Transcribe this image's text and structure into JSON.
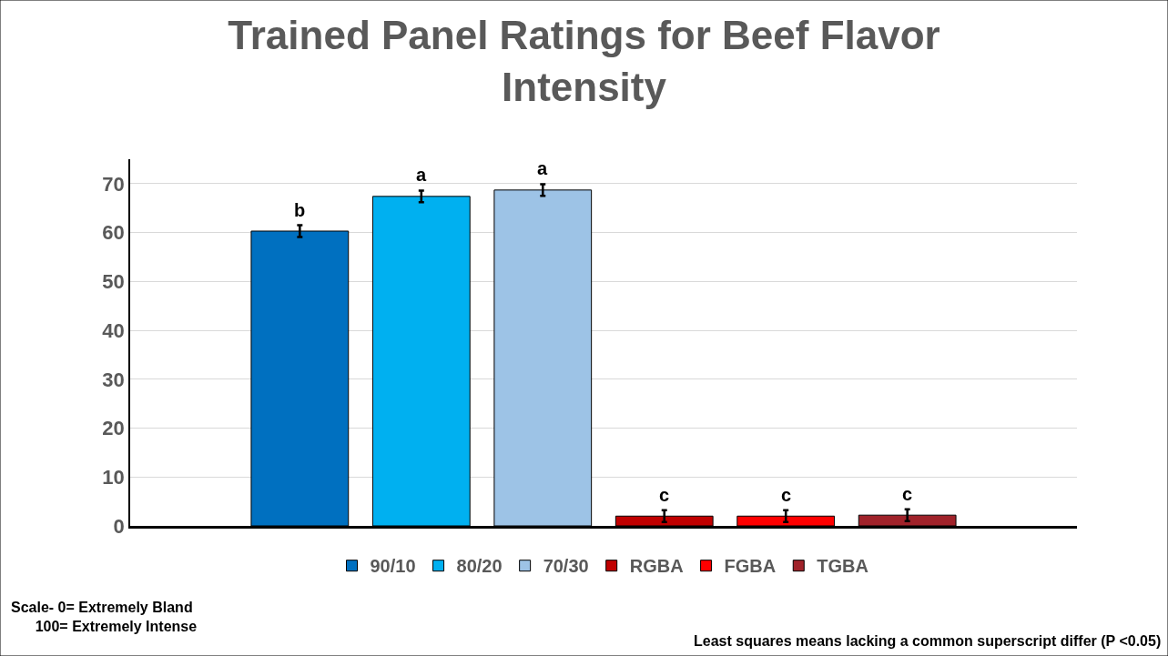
{
  "chart_data": {
    "type": "bar",
    "title": "Trained Panel Ratings for Beef Flavor Intensity",
    "categories": [
      null
    ],
    "series": [
      {
        "name": "90/10",
        "color": "#0070c0",
        "values": [
          60.3
        ],
        "errors": [
          1.2
        ],
        "value_labels": [
          "b"
        ]
      },
      {
        "name": "80/20",
        "color": "#00b0f0",
        "values": [
          67.4
        ],
        "errors": [
          1.2
        ],
        "value_labels": [
          "a"
        ]
      },
      {
        "name": "70/30",
        "color": "#9dc3e6",
        "values": [
          68.7
        ],
        "errors": [
          1.2
        ],
        "value_labels": [
          "a"
        ]
      },
      {
        "name": "RGBA",
        "color": "#c00000",
        "values": [
          2.0
        ],
        "errors": [
          1.2
        ],
        "value_labels": [
          "c"
        ]
      },
      {
        "name": "FGBA",
        "color": "#ff0000",
        "values": [
          2.0
        ],
        "errors": [
          1.2
        ],
        "value_labels": [
          "c"
        ]
      },
      {
        "name": "TGBA",
        "color": "#a0222a",
        "values": [
          2.2
        ],
        "errors": [
          1.2
        ],
        "value_labels": [
          "c"
        ]
      }
    ],
    "ylim": [
      0,
      75
    ],
    "yticks": [
      0,
      10,
      20,
      30,
      40,
      50,
      60,
      70
    ],
    "grid": "y",
    "legend": "bottom",
    "annotations": [
      "Scale- 0= Extremely Bland\n100= Extremely Intense",
      "Least squares means lacking a common superscript differ (P <0.05)"
    ]
  }
}
